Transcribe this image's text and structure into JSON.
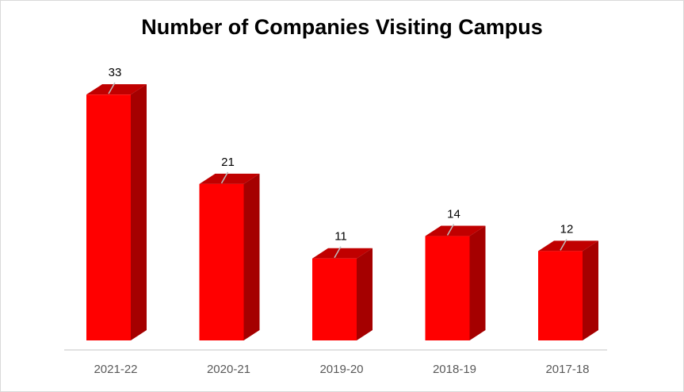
{
  "chart_data": {
    "type": "bar",
    "title": "Number of Companies Visiting Campus",
    "categories": [
      "2021-22",
      "2020-21",
      "2019-20",
      "2018-19",
      "2017-18"
    ],
    "values": [
      33,
      21,
      11,
      14,
      12
    ],
    "ylim": [
      0,
      36
    ],
    "grid": false,
    "legend": "none",
    "three_d": true,
    "colors": {
      "front": "#ff0000",
      "side": "#a50000",
      "top": "#c00000",
      "axis": "#d9d9d9",
      "leader": "#bfbfbf"
    }
  }
}
